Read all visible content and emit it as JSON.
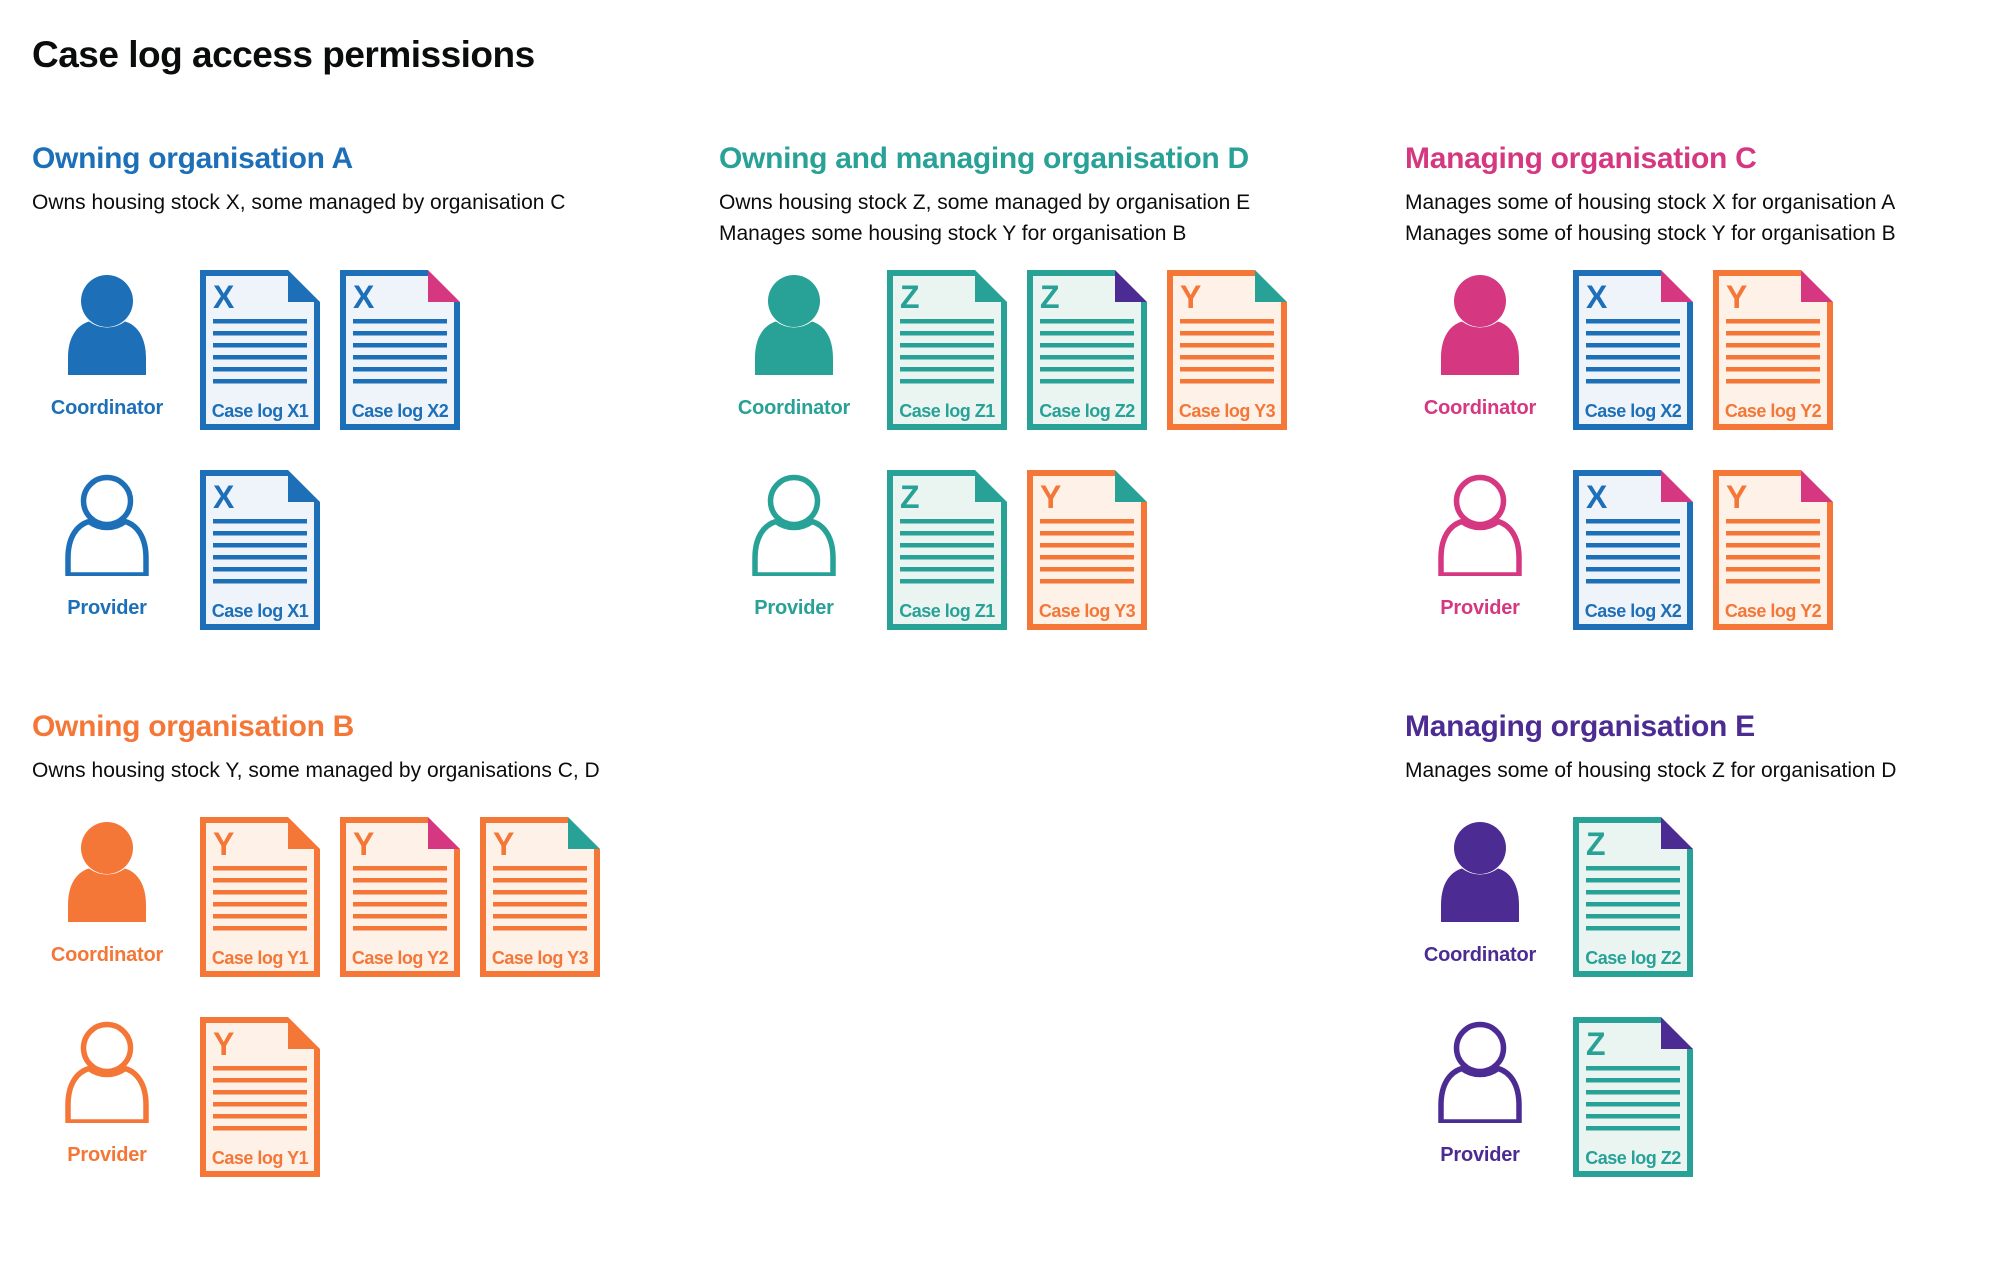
{
  "title": "Case log access permissions",
  "palette": {
    "blue": "#1d70b8",
    "teal": "#28a197",
    "pink": "#d53880",
    "orange": "#f47738",
    "purple": "#4c2c92",
    "text": "#0b0c0c"
  },
  "tints": {
    "blue": "#eef4fa",
    "teal": "#eaf5f2",
    "orange": "#fdf1e8",
    "pink": "#fbeef4",
    "purple": "#efecf7"
  },
  "sections": [
    {
      "id": "owning-organisation-a",
      "heading": "Owning organisation A",
      "color": "blue",
      "band": 1,
      "column": 1,
      "description": [
        "Owns housing stock X, some managed by organisation C"
      ],
      "rows": [
        {
          "role": "Coordinator",
          "person": "filled",
          "docs": [
            {
              "letter": "X",
              "label": "Case log X1",
              "color": "blue",
              "fold": "blue"
            },
            {
              "letter": "X",
              "label": "Case log X2",
              "color": "blue",
              "fold": "pink"
            }
          ]
        },
        {
          "role": "Provider",
          "person": "outline",
          "docs": [
            {
              "letter": "X",
              "label": "Case log X1",
              "color": "blue",
              "fold": "blue"
            }
          ]
        }
      ]
    },
    {
      "id": "owning-and-managing-organisation-d",
      "heading": "Owning and managing organisation D",
      "color": "teal",
      "band": 1,
      "column": 2,
      "description": [
        "Owns housing stock Z, some managed by organisation E",
        "Manages some housing stock Y for organisation B"
      ],
      "rows": [
        {
          "role": "Coordinator",
          "person": "filled",
          "docs": [
            {
              "letter": "Z",
              "label": "Case log Z1",
              "color": "teal",
              "fold": "teal"
            },
            {
              "letter": "Z",
              "label": "Case log Z2",
              "color": "teal",
              "fold": "purple"
            },
            {
              "letter": "Y",
              "label": "Case log Y3",
              "color": "orange",
              "fold": "teal"
            }
          ]
        },
        {
          "role": "Provider",
          "person": "outline",
          "docs": [
            {
              "letter": "Z",
              "label": "Case log Z1",
              "color": "teal",
              "fold": "teal"
            },
            {
              "letter": "Y",
              "label": "Case log Y3",
              "color": "orange",
              "fold": "teal"
            }
          ]
        }
      ]
    },
    {
      "id": "managing-organisation-c",
      "heading": "Managing organisation C",
      "color": "pink",
      "band": 1,
      "column": 3,
      "description": [
        "Manages some of housing stock X for organisation A",
        "Manages some of housing stock Y for organisation B"
      ],
      "rows": [
        {
          "role": "Coordinator",
          "person": "filled",
          "docs": [
            {
              "letter": "X",
              "label": "Case log X2",
              "color": "blue",
              "fold": "pink"
            },
            {
              "letter": "Y",
              "label": "Case log Y2",
              "color": "orange",
              "fold": "pink"
            }
          ]
        },
        {
          "role": "Provider",
          "person": "outline",
          "docs": [
            {
              "letter": "X",
              "label": "Case log X2",
              "color": "blue",
              "fold": "pink"
            },
            {
              "letter": "Y",
              "label": "Case log Y2",
              "color": "orange",
              "fold": "pink"
            }
          ]
        }
      ]
    },
    {
      "id": "owning-organisation-b",
      "heading": "Owning organisation B",
      "color": "orange",
      "band": 2,
      "column": 1,
      "description": [
        "Owns housing stock Y, some managed by organisations C, D"
      ],
      "rows": [
        {
          "role": "Coordinator",
          "person": "filled",
          "docs": [
            {
              "letter": "Y",
              "label": "Case log Y1",
              "color": "orange",
              "fold": "orange"
            },
            {
              "letter": "Y",
              "label": "Case log Y2",
              "color": "orange",
              "fold": "pink"
            },
            {
              "letter": "Y",
              "label": "Case log Y3",
              "color": "orange",
              "fold": "teal"
            }
          ]
        },
        {
          "role": "Provider",
          "person": "outline",
          "docs": [
            {
              "letter": "Y",
              "label": "Case log Y1",
              "color": "orange",
              "fold": "orange"
            }
          ]
        }
      ]
    },
    {
      "id": "managing-organisation-e",
      "heading": "Managing organisation E",
      "color": "purple",
      "band": 2,
      "column": 3,
      "description": [
        "Manages some of housing stock Z for organisation D"
      ],
      "rows": [
        {
          "role": "Coordinator",
          "person": "filled",
          "docs": [
            {
              "letter": "Z",
              "label": "Case log Z2",
              "color": "teal",
              "fold": "purple"
            }
          ]
        },
        {
          "role": "Provider",
          "person": "outline",
          "docs": [
            {
              "letter": "Z",
              "label": "Case log Z2",
              "color": "teal",
              "fold": "purple"
            }
          ]
        }
      ]
    }
  ]
}
